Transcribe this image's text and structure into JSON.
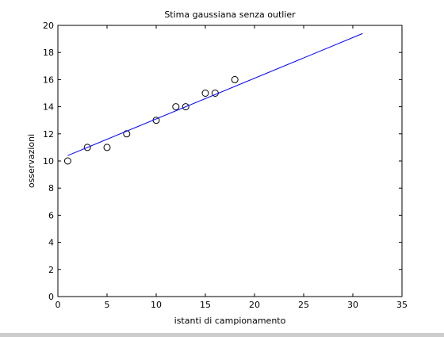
{
  "chart_data": {
    "type": "scatter",
    "title": "Stima gaussiana senza outlier",
    "xlabel": "istanti di campionamento",
    "ylabel": "osservazioni",
    "xlim": [
      0,
      35
    ],
    "ylim": [
      0,
      20
    ],
    "xticks": [
      "0",
      "5",
      "10",
      "15",
      "20",
      "25",
      "30",
      "35"
    ],
    "yticks": [
      "0",
      "2",
      "4",
      "6",
      "8",
      "10",
      "12",
      "14",
      "16",
      "18",
      "20"
    ],
    "grid": false,
    "legend": "none",
    "series": [
      {
        "kind": "points",
        "marker": "circle-open",
        "color": "#000000",
        "x": [
          1,
          3,
          5,
          7,
          10,
          12,
          13,
          15,
          16,
          18
        ],
        "y": [
          10,
          11,
          11,
          12,
          13,
          14,
          14,
          15,
          15,
          16
        ]
      },
      {
        "kind": "line",
        "color": "#0000ff",
        "x": [
          1,
          31
        ],
        "y": [
          10.4,
          19.4
        ]
      }
    ]
  }
}
